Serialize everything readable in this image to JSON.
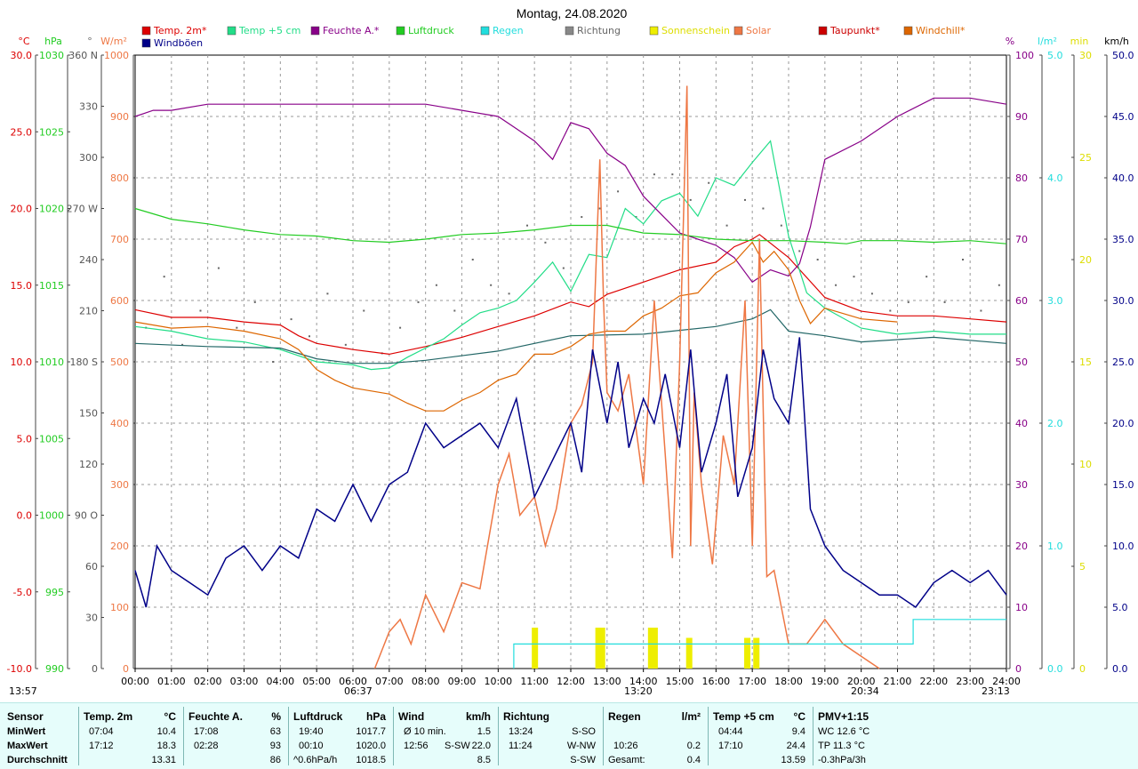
{
  "title": "Montag, 24.08.2020",
  "colors": {
    "temp": "#dd0000",
    "temp5": "#22dd88",
    "hum": "#880088",
    "press": "#22cc22",
    "rain": "#22dddd",
    "dir": "#666666",
    "sun": "#eeee00",
    "solar": "#ee7744",
    "dew": "#226666",
    "windchill": "#dd6600",
    "gust": "#000088"
  },
  "legend": [
    {
      "label": "Temp. 2m*",
      "color": "#dd0000"
    },
    {
      "label": "Temp +5 cm",
      "color": "#22dd88"
    },
    {
      "label": "Feuchte A.*",
      "color": "#880088"
    },
    {
      "label": "Luftdruck",
      "color": "#22cc22"
    },
    {
      "label": "Regen",
      "color": "#22dddd"
    },
    {
      "label": "Richtung",
      "color": "#888888"
    },
    {
      "label": "Sonnenschein",
      "color": "#eeee00"
    },
    {
      "label": "Solar",
      "color": "#ee7744"
    },
    {
      "label": "Taupunkt*",
      "color": "#cc0000"
    },
    {
      "label": "Windchill*",
      "color": "#dd6600"
    },
    {
      "label": "Windböen",
      "color": "#000088"
    }
  ],
  "axis_units": {
    "temp": "°C",
    "press": "hPa",
    "dir": "°",
    "solar": "W/m²",
    "hum": "%",
    "rain": "l/m²",
    "sun": "min",
    "wind": "km/h"
  },
  "axes": {
    "temp": [
      "30.0",
      "25.0",
      "20.0",
      "15.0",
      "10.0",
      "5.0",
      "0.0",
      "-5.0",
      "-10.0"
    ],
    "press": [
      "1030",
      "1025",
      "1020",
      "1015",
      "1010",
      "1005",
      "1000",
      "995",
      "990"
    ],
    "dir": [
      "360 N",
      "330",
      "300",
      "270 W",
      "240",
      "210",
      "180 S",
      "150",
      "120",
      "90 O",
      "60",
      "30",
      "0"
    ],
    "solar": [
      "1000",
      "900",
      "800",
      "700",
      "600",
      "500",
      "400",
      "300",
      "200",
      "100",
      "0"
    ],
    "hum": [
      "100",
      "90",
      "80",
      "70",
      "60",
      "50",
      "40",
      "30",
      "20",
      "10",
      "0"
    ],
    "rain": [
      "5.0",
      "4.0",
      "3.0",
      "2.0",
      "1.0",
      "0.0"
    ],
    "sun": [
      "30",
      "25",
      "20",
      "15",
      "10",
      "5",
      "0"
    ],
    "wind": [
      "50.0",
      "45.0",
      "40.0",
      "35.0",
      "30.0",
      "25.0",
      "20.0",
      "15.0",
      "10.0",
      "5.0",
      "0.0"
    ]
  },
  "time_labels": [
    "00:00",
    "01:00",
    "02:00",
    "03:00",
    "04:00",
    "05:00",
    "06:00",
    "07:00",
    "08:00",
    "09:00",
    "10:00",
    "11:00",
    "12:00",
    "13:00",
    "14:00",
    "15:00",
    "16:00",
    "17:00",
    "18:00",
    "19:00",
    "20:00",
    "21:00",
    "22:00",
    "23:00",
    "24:00"
  ],
  "markers": {
    "left": "13:57",
    "sunrise": "06:37",
    "solar_noon": "13:20",
    "sunset": "20:34",
    "moon": "23:13"
  },
  "chart_data": {
    "type": "line",
    "title": "Montag, 24.08.2020",
    "x_range": [
      "00:00",
      "24:00"
    ],
    "ylim": {
      "temp": [
        -10,
        30
      ],
      "press": [
        990,
        1030
      ],
      "dir": [
        0,
        360
      ],
      "solar": [
        0,
        1000
      ],
      "hum": [
        0,
        100
      ],
      "rain": [
        0,
        5
      ],
      "sun": [
        0,
        30
      ],
      "wind": [
        0,
        50
      ]
    },
    "grid": true,
    "series": [
      {
        "name": "Temp. 2m*",
        "axis": "temp",
        "x": [
          0,
          1,
          2,
          3,
          4,
          4.5,
          5,
          6,
          7,
          8,
          9,
          10,
          11,
          12,
          12.5,
          13,
          14,
          15,
          16,
          16.5,
          17,
          17.2,
          18,
          19,
          20,
          21,
          22,
          23,
          24
        ],
        "y": [
          13.4,
          12.9,
          12.9,
          12.6,
          12.4,
          11.7,
          11.2,
          10.8,
          10.5,
          11.0,
          11.6,
          12.3,
          13.0,
          13.9,
          13.6,
          14.4,
          15.2,
          16.0,
          16.5,
          17.5,
          18.0,
          18.3,
          16.8,
          14.2,
          13.3,
          13.0,
          13.0,
          12.8,
          12.6
        ]
      },
      {
        "name": "Temp +5 cm",
        "axis": "temp",
        "x": [
          0,
          1,
          2,
          3,
          4,
          5,
          6,
          6.5,
          7,
          7.5,
          8,
          8.5,
          9,
          9.5,
          10,
          10.5,
          11,
          11.5,
          12,
          12.5,
          13,
          13.5,
          14,
          14.5,
          15,
          15.5,
          16,
          16.5,
          17,
          17.5,
          18,
          18.5,
          19,
          20,
          20.5,
          21,
          22,
          23,
          24
        ],
        "y": [
          12.3,
          12.0,
          11.5,
          11.3,
          10.8,
          10.0,
          9.8,
          9.5,
          9.6,
          10.3,
          10.9,
          11.5,
          12.4,
          13.2,
          13.5,
          14.0,
          15.2,
          16.5,
          14.6,
          17.0,
          16.8,
          20.0,
          19.0,
          20.5,
          21.0,
          19.5,
          22.0,
          21.5,
          23.0,
          24.4,
          18.2,
          14.5,
          13.5,
          12.2,
          12.0,
          11.8,
          12.0,
          11.8,
          11.8
        ]
      },
      {
        "name": "Feuchte A.*",
        "axis": "hum",
        "x": [
          0,
          0.5,
          1,
          2,
          3,
          4,
          5,
          6,
          7,
          8,
          9,
          10,
          10.5,
          11,
          11.5,
          12,
          12.5,
          13,
          13.5,
          14,
          14.5,
          15,
          16,
          16.5,
          17,
          17.5,
          18,
          18.3,
          18.6,
          19,
          20,
          21,
          22,
          23,
          24
        ],
        "y": [
          90,
          91,
          91,
          92,
          92,
          92,
          92,
          92,
          92,
          92,
          91,
          90,
          88,
          86,
          83,
          89,
          88,
          84,
          82,
          77,
          74,
          71,
          69,
          67,
          63,
          65,
          64,
          66,
          72,
          83,
          86,
          90,
          93,
          93,
          92
        ]
      },
      {
        "name": "Luftdruck",
        "axis": "press",
        "x": [
          0,
          1,
          2,
          3,
          4,
          5,
          6,
          7,
          8,
          9,
          10,
          11,
          12,
          13,
          14,
          15,
          16,
          17,
          18,
          19,
          19.6,
          20,
          21,
          22,
          23,
          24
        ],
        "y": [
          1020.0,
          1019.3,
          1019.0,
          1018.6,
          1018.3,
          1018.2,
          1017.9,
          1017.8,
          1018.0,
          1018.3,
          1018.4,
          1018.6,
          1018.9,
          1018.9,
          1018.4,
          1018.3,
          1018.0,
          1017.9,
          1017.9,
          1017.8,
          1017.7,
          1017.9,
          1017.9,
          1017.8,
          1017.9,
          1017.7
        ]
      },
      {
        "name": "Taupunkt*",
        "axis": "temp",
        "x": [
          0,
          2,
          4,
          5,
          6,
          7,
          8,
          10,
          12,
          14,
          16,
          17,
          17.5,
          18,
          19,
          20,
          22,
          24
        ],
        "y": [
          11.2,
          11.0,
          10.9,
          10.2,
          9.9,
          9.9,
          10.1,
          10.7,
          11.7,
          11.8,
          12.3,
          12.8,
          13.4,
          12.0,
          11.7,
          11.3,
          11.6,
          11.2
        ]
      },
      {
        "name": "Windchill*",
        "axis": "temp",
        "x": [
          0,
          1,
          2,
          3,
          4,
          4.5,
          5,
          5.5,
          6,
          7,
          7.5,
          8,
          8.5,
          9,
          9.5,
          10,
          10.5,
          11,
          11.5,
          12,
          12.5,
          13,
          13.5,
          14,
          14.5,
          15,
          15.5,
          16,
          16.5,
          17,
          17.3,
          17.6,
          18,
          18.3,
          18.6,
          19,
          20,
          21
        ],
        "y": [
          12.6,
          12.2,
          12.3,
          12.0,
          11.5,
          10.8,
          9.5,
          8.8,
          8.3,
          7.9,
          7.3,
          6.8,
          6.8,
          7.5,
          8.0,
          8.8,
          9.2,
          10.5,
          10.5,
          11.0,
          11.8,
          12.0,
          12.0,
          13.0,
          13.5,
          14.3,
          14.5,
          15.8,
          16.5,
          17.8,
          16.5,
          17.2,
          16.0,
          14.0,
          12.5,
          13.5,
          12.8,
          12.6
        ]
      },
      {
        "name": "Solar",
        "axis": "solar",
        "x": [
          6.6,
          7,
          7.3,
          7.6,
          8,
          8.5,
          9,
          9.5,
          10,
          10.3,
          10.6,
          11,
          11.3,
          11.6,
          12,
          12.3,
          12.6,
          12.8,
          12.9,
          13,
          13.3,
          13.6,
          14,
          14.3,
          14.6,
          14.8,
          15,
          15.2,
          15.3,
          15.4,
          15.6,
          15.9,
          16.2,
          16.5,
          16.8,
          17,
          17.2,
          17.4,
          17.6,
          18,
          18.5,
          19,
          19.5,
          20,
          20.5
        ],
        "y": [
          0,
          60,
          80,
          40,
          120,
          60,
          140,
          130,
          300,
          350,
          250,
          280,
          200,
          260,
          400,
          430,
          500,
          830,
          600,
          450,
          420,
          480,
          300,
          600,
          350,
          180,
          500,
          950,
          200,
          450,
          300,
          170,
          380,
          300,
          600,
          200,
          700,
          150,
          160,
          40,
          40,
          80,
          40,
          20,
          0
        ]
      },
      {
        "name": "Windböen",
        "axis": "wind",
        "x": [
          0,
          0.3,
          0.6,
          1,
          1.5,
          2,
          2.5,
          3,
          3.5,
          4,
          4.5,
          5,
          5.5,
          6,
          6.5,
          7,
          7.5,
          8,
          8.5,
          9,
          9.5,
          10,
          10.5,
          11,
          11.5,
          12,
          12.3,
          12.6,
          13,
          13.3,
          13.6,
          14,
          14.3,
          14.6,
          15,
          15.3,
          15.6,
          16,
          16.3,
          16.6,
          17,
          17.3,
          17.6,
          18,
          18.3,
          18.6,
          19,
          19.5,
          20,
          20.5,
          21,
          21.5,
          22,
          22.5,
          23,
          23.5,
          24
        ],
        "y": [
          8,
          5,
          10,
          8,
          7,
          6,
          9,
          10,
          8,
          10,
          9,
          13,
          12,
          15,
          12,
          15,
          16,
          20,
          18,
          19,
          20,
          18,
          22,
          14,
          17,
          20,
          16,
          26,
          20,
          25,
          18,
          22,
          20,
          24,
          18,
          26,
          16,
          20,
          24,
          14,
          18,
          26,
          22,
          20,
          27,
          13,
          10,
          8,
          7,
          6,
          6,
          5,
          7,
          8,
          7,
          8,
          6
        ]
      },
      {
        "name": "Regen",
        "axis": "rain",
        "type": "step",
        "x": [
          10.43,
          10.43,
          21.43,
          21.43,
          24
        ],
        "y": [
          0,
          0.2,
          0.2,
          0.4,
          0.4
        ]
      }
    ],
    "direction_points": {
      "axis": "dir",
      "x": [
        0.3,
        0.8,
        1.3,
        1.8,
        2.3,
        2.8,
        3.3,
        3.8,
        4.3,
        4.8,
        5.3,
        5.8,
        6.3,
        6.8,
        7.3,
        7.8,
        8.3,
        8.8,
        9.3,
        9.8,
        10.3,
        10.8,
        11.3,
        11.8,
        12.3,
        12.8,
        13.3,
        13.8,
        14.3,
        14.8,
        15.3,
        15.8,
        16.3,
        16.8,
        17.3,
        17.8,
        18.3,
        18.8,
        19.3,
        19.8,
        20.3,
        20.8,
        21.3,
        21.8,
        22.3,
        22.8,
        23.3,
        23.8
      ],
      "y": [
        200,
        230,
        190,
        210,
        235,
        200,
        215,
        180,
        205,
        195,
        220,
        190,
        210,
        185,
        200,
        215,
        225,
        210,
        240,
        225,
        220,
        260,
        250,
        235,
        265,
        270,
        280,
        265,
        290,
        290,
        275,
        285,
        260,
        275,
        270,
        260,
        245,
        240,
        225,
        230,
        220,
        210,
        215,
        230,
        215,
        240,
        210,
        225
      ]
    },
    "sunshine_bars": {
      "axis": "sun",
      "x": [
        11.0,
        12.75,
        12.85,
        14.2,
        14.3,
        15.25,
        16.85,
        17.1
      ],
      "y": [
        2,
        2,
        2,
        2,
        2,
        1.5,
        1.5,
        1.5
      ]
    }
  },
  "stats": {
    "sensor": {
      "header": "Sensor",
      "rows": [
        "MinWert",
        "MaxWert",
        "Durchschnitt"
      ]
    },
    "temp": {
      "header": "Temp. 2m",
      "unit": "°C",
      "times": [
        "07:04",
        "17:12",
        ""
      ],
      "values": [
        "10.4",
        "18.3",
        "13.31"
      ]
    },
    "hum": {
      "header": "Feuchte A.",
      "unit": "%",
      "times": [
        "17:08",
        "02:28",
        ""
      ],
      "values": [
        "63",
        "93",
        "86"
      ]
    },
    "press": {
      "header": "Luftdruck",
      "unit": "hPa",
      "times": [
        "19:40",
        "00:10",
        "^0.6hPa/h"
      ],
      "values": [
        "1017.7",
        "1020.0",
        "1018.5"
      ]
    },
    "wind": {
      "header": "Wind",
      "unit": "km/h",
      "times": [
        "Ø 10 min.",
        "12:56",
        ""
      ],
      "dirs": [
        "",
        "S-SW",
        ""
      ],
      "values": [
        "1.5",
        "22.0",
        "8.5"
      ]
    },
    "dir": {
      "header": "Richtung",
      "times": [
        "13:24",
        "11:24",
        ""
      ],
      "values": [
        "S-SO",
        "W-NW",
        "S-SW"
      ]
    },
    "rain": {
      "header": "Regen",
      "unit": "l/m²",
      "times": [
        "",
        "10:26",
        "Gesamt:"
      ],
      "values": [
        "",
        "0.2",
        "0.4"
      ]
    },
    "temp5": {
      "header": "Temp +5 cm",
      "unit": "°C",
      "times": [
        "04:44",
        "17:10",
        ""
      ],
      "values": [
        "9.4",
        "24.4",
        "13.59"
      ]
    },
    "pmv": {
      "header": "PMV+1:15",
      "lines": [
        "WC 12.6 °C",
        "TP 11.3 °C",
        "-0.3hPa/3h"
      ]
    }
  }
}
